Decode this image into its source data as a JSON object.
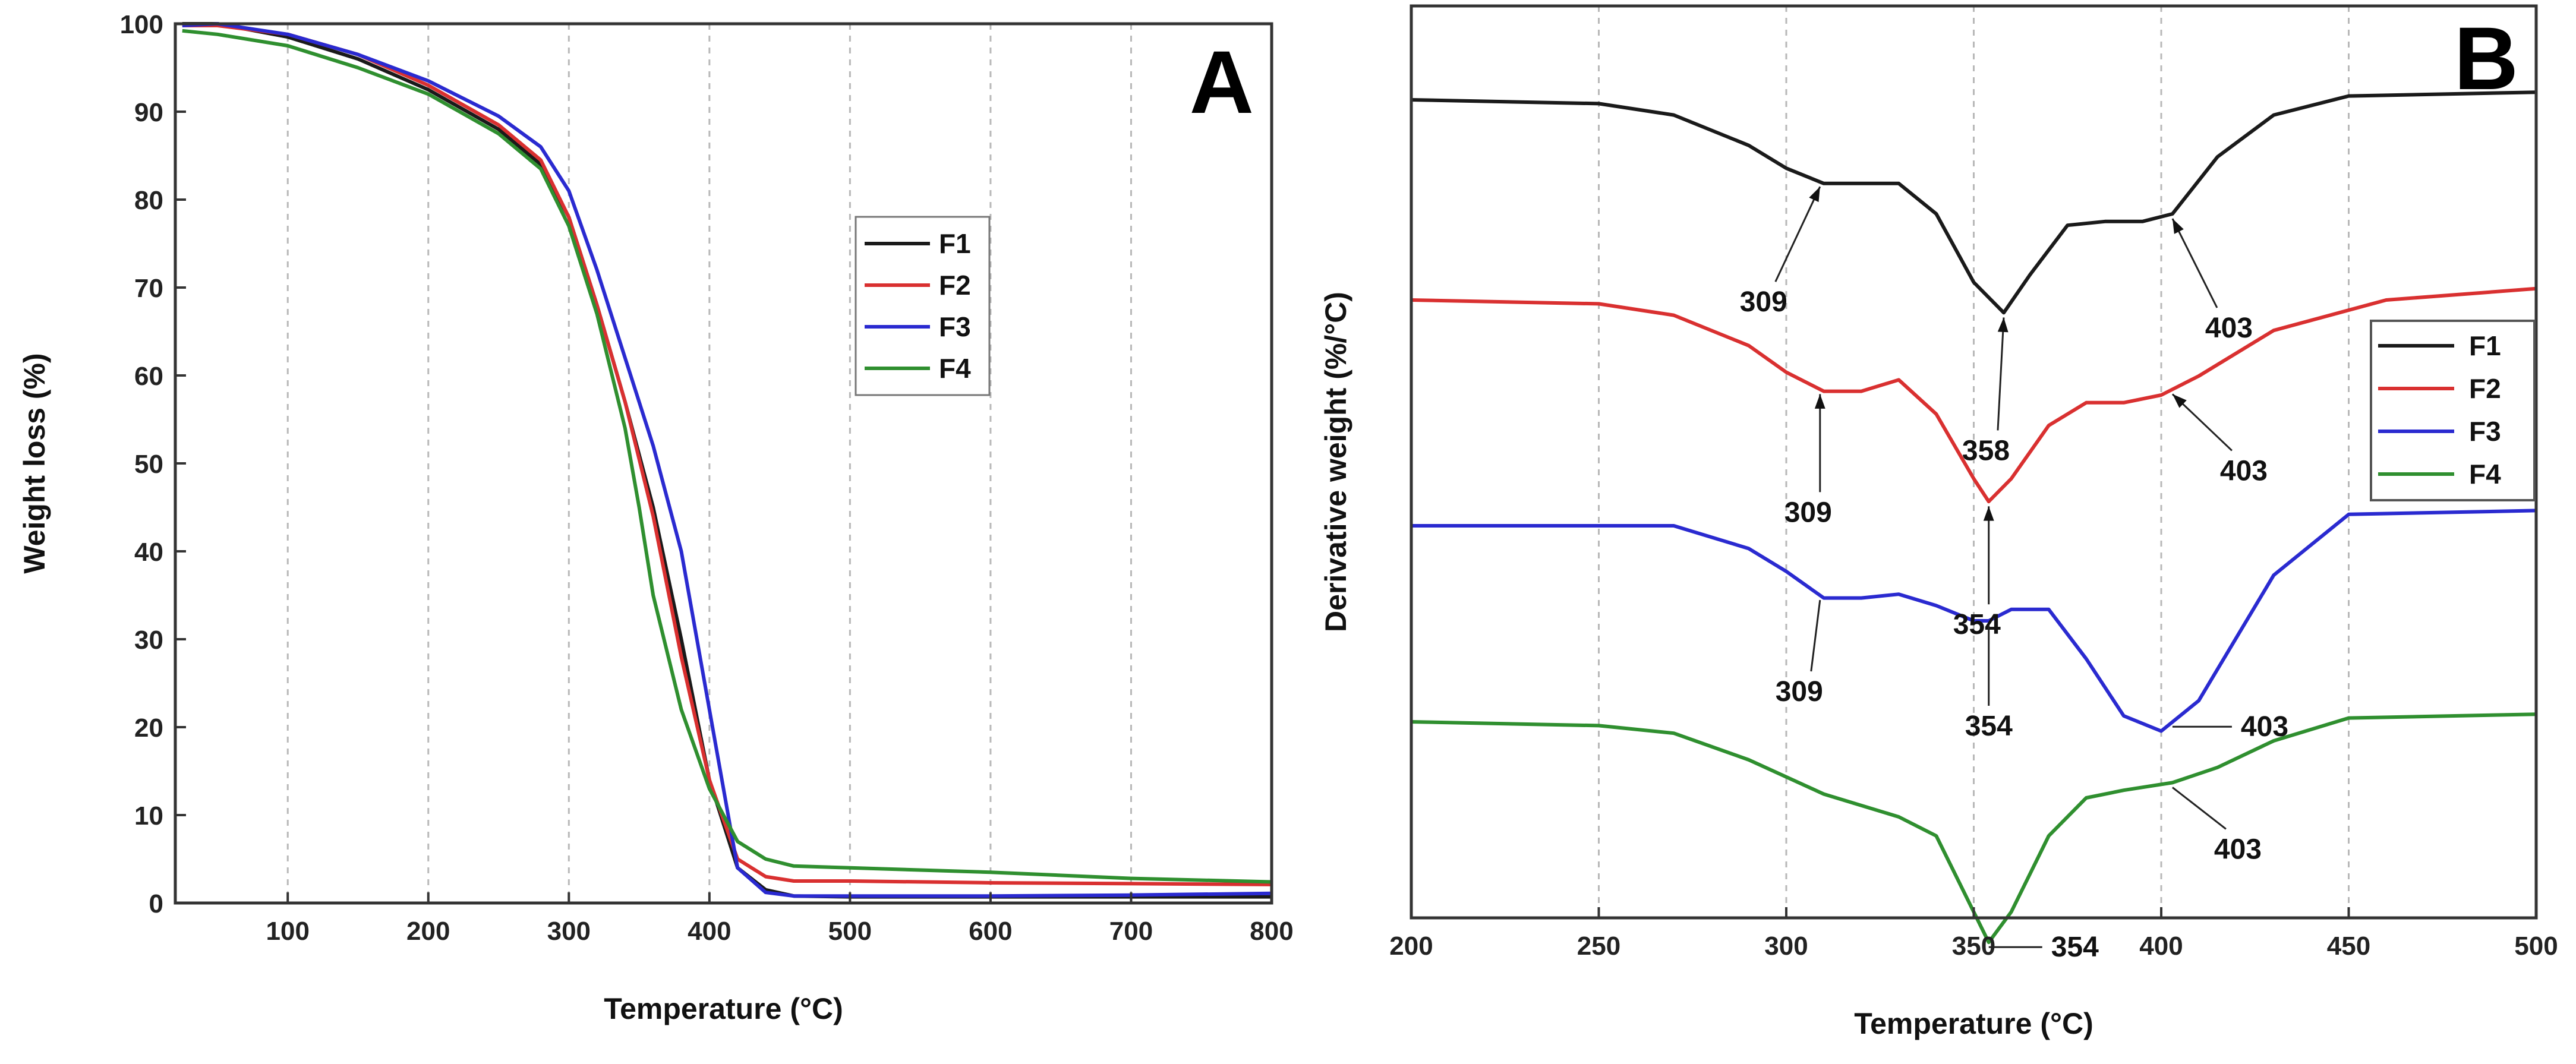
{
  "chart_data": [
    {
      "panel": "A",
      "type": "line",
      "title": "",
      "xlabel": "Temperature (°C)",
      "ylabel": "Weight loss (%)",
      "xlim": [
        20,
        800
      ],
      "ylim": [
        0,
        100
      ],
      "xticks": [
        100,
        200,
        300,
        400,
        500,
        600,
        700,
        800
      ],
      "yticks": [
        0,
        10,
        20,
        30,
        40,
        50,
        60,
        70,
        80,
        90,
        100
      ],
      "grid": "vertical dashed",
      "legend_position": "center-right",
      "series": [
        {
          "name": "F1",
          "color": "#1a1a1a",
          "x": [
            25,
            50,
            100,
            150,
            200,
            250,
            280,
            300,
            320,
            340,
            360,
            380,
            400,
            420,
            440,
            460,
            500,
            600,
            700,
            800
          ],
          "y": [
            100,
            100,
            98.5,
            96,
            92.5,
            88,
            84,
            78,
            68,
            57,
            45,
            30,
            14,
            4,
            1.5,
            0.8,
            0.7,
            0.7,
            0.7,
            0.7
          ]
        },
        {
          "name": "F2",
          "color": "#d93030",
          "x": [
            25,
            50,
            100,
            150,
            200,
            250,
            280,
            300,
            320,
            340,
            360,
            380,
            400,
            420,
            440,
            460,
            500,
            600,
            700,
            800
          ],
          "y": [
            99.8,
            99.8,
            98.8,
            96.5,
            93,
            88.5,
            84.5,
            78,
            68,
            57,
            44,
            28,
            14,
            5,
            3,
            2.5,
            2.5,
            2.3,
            2.2,
            2.1
          ]
        },
        {
          "name": "F3",
          "color": "#2a2ad0",
          "x": [
            25,
            50,
            100,
            150,
            200,
            250,
            280,
            300,
            320,
            340,
            360,
            380,
            400,
            420,
            440,
            460,
            500,
            600,
            700,
            800
          ],
          "y": [
            99.8,
            100,
            98.8,
            96.5,
            93.5,
            89.5,
            86,
            81,
            72,
            62,
            52,
            40,
            22,
            4,
            1.2,
            0.8,
            0.8,
            0.8,
            0.9,
            1.1
          ]
        },
        {
          "name": "F4",
          "color": "#2f8f2f",
          "x": [
            25,
            50,
            100,
            150,
            200,
            250,
            280,
            300,
            320,
            340,
            350,
            360,
            380,
            400,
            420,
            440,
            460,
            500,
            600,
            700,
            800
          ],
          "y": [
            99.2,
            98.8,
            97.5,
            95,
            92,
            87.5,
            83.5,
            77,
            67,
            54,
            45,
            35,
            22,
            13,
            7,
            5,
            4.2,
            4,
            3.5,
            2.8,
            2.4
          ]
        }
      ],
      "panel_label": "A"
    },
    {
      "panel": "B",
      "type": "line",
      "title": "",
      "xlabel": "Temperature (°C)",
      "ylabel": "Derivative weight (%/°C)",
      "xlim": [
        200,
        500
      ],
      "xticks": [
        200,
        250,
        300,
        350,
        400,
        450,
        500
      ],
      "yaxis_unscaled_note": "curves stacked with vertical offsets; no y tick labels",
      "grid": "vertical dashed",
      "legend_position": "center-right",
      "series": [
        {
          "name": "F1",
          "color": "#1a1a1a",
          "x": [
            200,
            250,
            270,
            290,
            300,
            310,
            320,
            330,
            340,
            350,
            358,
            365,
            375,
            385,
            395,
            403,
            415,
            430,
            450,
            500
          ],
          "y": [
            0.0,
            -0.01,
            -0.04,
            -0.12,
            -0.18,
            -0.22,
            -0.22,
            -0.22,
            -0.3,
            -0.48,
            -0.56,
            -0.46,
            -0.33,
            -0.32,
            -0.32,
            -0.3,
            -0.15,
            -0.04,
            0.01,
            0.02
          ]
        },
        {
          "name": "F2",
          "color": "#d93030",
          "x": [
            200,
            250,
            270,
            290,
            300,
            310,
            320,
            330,
            340,
            350,
            354,
            360,
            370,
            380,
            390,
            400,
            410,
            430,
            460,
            500
          ],
          "y": [
            0.0,
            -0.01,
            -0.04,
            -0.12,
            -0.19,
            -0.24,
            -0.24,
            -0.21,
            -0.3,
            -0.47,
            -0.53,
            -0.47,
            -0.33,
            -0.27,
            -0.27,
            -0.25,
            -0.2,
            -0.08,
            0.0,
            0.03
          ]
        },
        {
          "name": "F3",
          "color": "#2a2ad0",
          "x": [
            200,
            270,
            290,
            300,
            310,
            320,
            330,
            340,
            350,
            354,
            360,
            370,
            380,
            390,
            400,
            410,
            430,
            450,
            500
          ],
          "y": [
            0.0,
            0.0,
            -0.06,
            -0.12,
            -0.19,
            -0.19,
            -0.18,
            -0.21,
            -0.25,
            -0.25,
            -0.22,
            -0.22,
            -0.35,
            -0.5,
            -0.54,
            -0.46,
            -0.13,
            0.03,
            0.04
          ]
        },
        {
          "name": "F4",
          "color": "#2f8f2f",
          "x": [
            200,
            250,
            270,
            290,
            310,
            330,
            340,
            350,
            354,
            360,
            370,
            380,
            390,
            403,
            415,
            430,
            450,
            500
          ],
          "y": [
            0.0,
            -0.01,
            -0.03,
            -0.1,
            -0.19,
            -0.25,
            -0.3,
            -0.5,
            -0.58,
            -0.5,
            -0.3,
            -0.2,
            -0.18,
            -0.16,
            -0.12,
            -0.05,
            0.01,
            0.02
          ]
        }
      ],
      "annotations": [
        {
          "series": "F1",
          "text": "309"
        },
        {
          "series": "F1",
          "text": "358"
        },
        {
          "series": "F1",
          "text": "403"
        },
        {
          "series": "F2",
          "text": "309"
        },
        {
          "series": "F2",
          "text": "354"
        },
        {
          "series": "F2",
          "text": "403"
        },
        {
          "series": "F3",
          "text": "309"
        },
        {
          "series": "F3",
          "text": "354"
        },
        {
          "series": "F3",
          "text": "403"
        },
        {
          "series": "F4",
          "text": "354"
        },
        {
          "series": "F4",
          "text": "403"
        }
      ],
      "panel_label": "B"
    }
  ]
}
